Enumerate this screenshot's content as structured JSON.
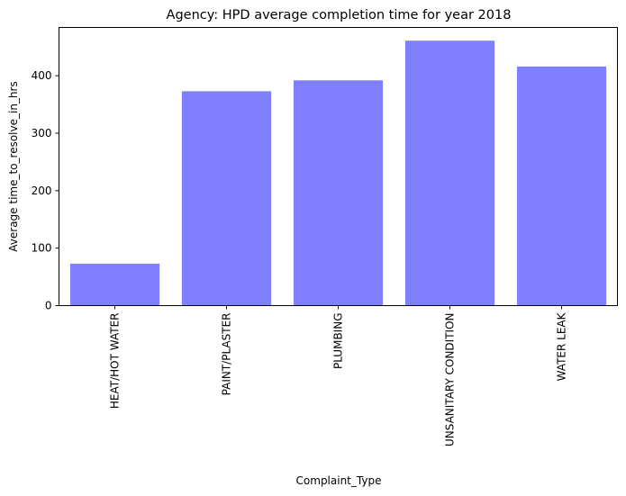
{
  "chart_data": {
    "type": "bar",
    "title": "Agency: HPD average completion time for year 2018",
    "xlabel": "Complaint_Type",
    "ylabel": "Average time_to_resolve_in_hrs",
    "categories": [
      "HEAT/HOT WATER",
      "PAINT/PLASTER",
      "PLUMBING",
      "UNSANITARY CONDITION",
      "WATER LEAK"
    ],
    "values": [
      73,
      373,
      392,
      461,
      416
    ],
    "ylim": [
      0,
      484
    ],
    "yticks": [
      0,
      100,
      200,
      300,
      400
    ],
    "grid": false,
    "bar_color": "#8080ff",
    "bar_alpha": 0.5
  }
}
